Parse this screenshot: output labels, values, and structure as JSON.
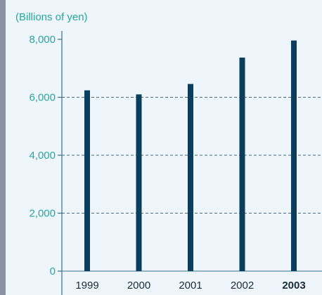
{
  "chart_data": {
    "type": "bar",
    "unit_label": "(Billions of yen)",
    "categories": [
      "1999",
      "2000",
      "2001",
      "2002",
      "2003"
    ],
    "highlight_category": "2003",
    "values": [
      6240,
      6100,
      6460,
      7370,
      7960
    ],
    "ylim": [
      0,
      8000
    ],
    "yticks": [
      0,
      2000,
      4000,
      6000,
      8000
    ],
    "ytick_labels": [
      "0",
      "2,000",
      "4,000",
      "6,000",
      "8,000"
    ],
    "grid": "dashed horizontal",
    "xlabel": "",
    "ylabel": ""
  },
  "colors": {
    "background": "#eef6fb",
    "bar": "#0b3d5c",
    "axis_text": "#2aa59e",
    "axis_line": "#3b6e8f",
    "grid": "#4a6b85",
    "left_band": "#8a93a3",
    "x_label": "#1a2a3a"
  }
}
